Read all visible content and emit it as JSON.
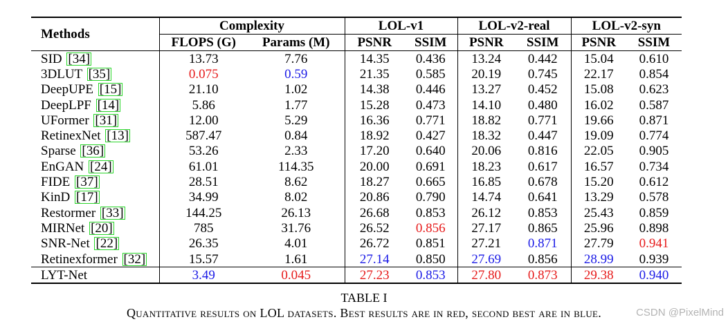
{
  "table": {
    "header": {
      "methods": "Methods",
      "complexity": "Complexity",
      "flops": "FLOPS (G)",
      "params": "Params (M)",
      "datasets": [
        "LOL-v1",
        "LOL-v2-real",
        "LOL-v2-syn"
      ],
      "psnr": "PSNR",
      "ssim": "SSIM"
    },
    "rows": [
      {
        "method": "SID",
        "ref": "34",
        "cells": [
          "13.73",
          "7.76",
          "14.35",
          "0.436",
          "13.24",
          "0.442",
          "15.04",
          "0.610"
        ]
      },
      {
        "method": "3DLUT",
        "ref": "35",
        "cells": [
          "0.075",
          "0.59",
          "21.35",
          "0.585",
          "20.19",
          "0.745",
          "22.17",
          "0.854"
        ]
      },
      {
        "method": "DeepUPE",
        "ref": "15",
        "cells": [
          "21.10",
          "1.02",
          "14.38",
          "0.446",
          "13.27",
          "0.452",
          "15.08",
          "0.623"
        ]
      },
      {
        "method": "DeepLPF",
        "ref": "14",
        "cells": [
          "5.86",
          "1.77",
          "15.28",
          "0.473",
          "14.10",
          "0.480",
          "16.02",
          "0.587"
        ]
      },
      {
        "method": "UFormer",
        "ref": "31",
        "cells": [
          "12.00",
          "5.29",
          "16.36",
          "0.771",
          "18.82",
          "0.771",
          "19.66",
          "0.871"
        ]
      },
      {
        "method": "RetinexNet",
        "ref": "13",
        "cells": [
          "587.47",
          "0.84",
          "18.92",
          "0.427",
          "18.32",
          "0.447",
          "19.09",
          "0.774"
        ]
      },
      {
        "method": "Sparse",
        "ref": "36",
        "cells": [
          "53.26",
          "2.33",
          "17.20",
          "0.640",
          "20.06",
          "0.816",
          "22.05",
          "0.905"
        ]
      },
      {
        "method": "EnGAN",
        "ref": "24",
        "cells": [
          "61.01",
          "114.35",
          "20.00",
          "0.691",
          "18.23",
          "0.617",
          "16.57",
          "0.734"
        ]
      },
      {
        "method": "FIDE",
        "ref": "37",
        "cells": [
          "28.51",
          "8.62",
          "18.27",
          "0.665",
          "16.85",
          "0.678",
          "15.20",
          "0.612"
        ]
      },
      {
        "method": "KinD",
        "ref": "17",
        "cells": [
          "34.99",
          "8.02",
          "20.86",
          "0.790",
          "14.74",
          "0.641",
          "13.29",
          "0.578"
        ]
      },
      {
        "method": "Restormer",
        "ref": "33",
        "cells": [
          "144.25",
          "26.13",
          "26.68",
          "0.853",
          "26.12",
          "0.853",
          "25.43",
          "0.859"
        ]
      },
      {
        "method": "MIRNet",
        "ref": "20",
        "cells": [
          "785",
          "31.76",
          "26.52",
          "0.856",
          "27.17",
          "0.865",
          "25.96",
          "0.898"
        ]
      },
      {
        "method": "SNR-Net",
        "ref": "22",
        "cells": [
          "26.35",
          "4.01",
          "26.72",
          "0.851",
          "27.21",
          "0.871",
          "27.79",
          "0.941"
        ]
      },
      {
        "method": "Retinexformer",
        "ref": "32",
        "cells": [
          "15.57",
          "1.61",
          "27.14",
          "0.850",
          "27.69",
          "0.856",
          "28.99",
          "0.939"
        ]
      },
      {
        "method": "LYT-Net",
        "ref": "",
        "cells": [
          "3.49",
          "0.045",
          "27.23",
          "0.853",
          "27.80",
          "0.873",
          "29.38",
          "0.940"
        ]
      }
    ],
    "highlights": {
      "colors": {
        "best": "#e61a1a",
        "second": "#1a1ae6"
      },
      "best": [
        [
          1,
          0
        ],
        [
          14,
          1
        ],
        [
          11,
          3
        ],
        [
          12,
          7
        ],
        [
          14,
          2
        ],
        [
          14,
          4
        ],
        [
          14,
          5
        ],
        [
          14,
          6
        ]
      ],
      "second": [
        [
          1,
          1
        ],
        [
          14,
          0
        ],
        [
          12,
          5
        ],
        [
          13,
          2
        ],
        [
          13,
          4
        ],
        [
          13,
          6
        ],
        [
          14,
          3
        ],
        [
          14,
          7
        ]
      ]
    }
  },
  "caption": {
    "label": "TABLE I",
    "text": "Quantitative results on LOL datasets. Best results are in red, second best are in blue."
  },
  "watermark": "CSDN @PixelMind"
}
